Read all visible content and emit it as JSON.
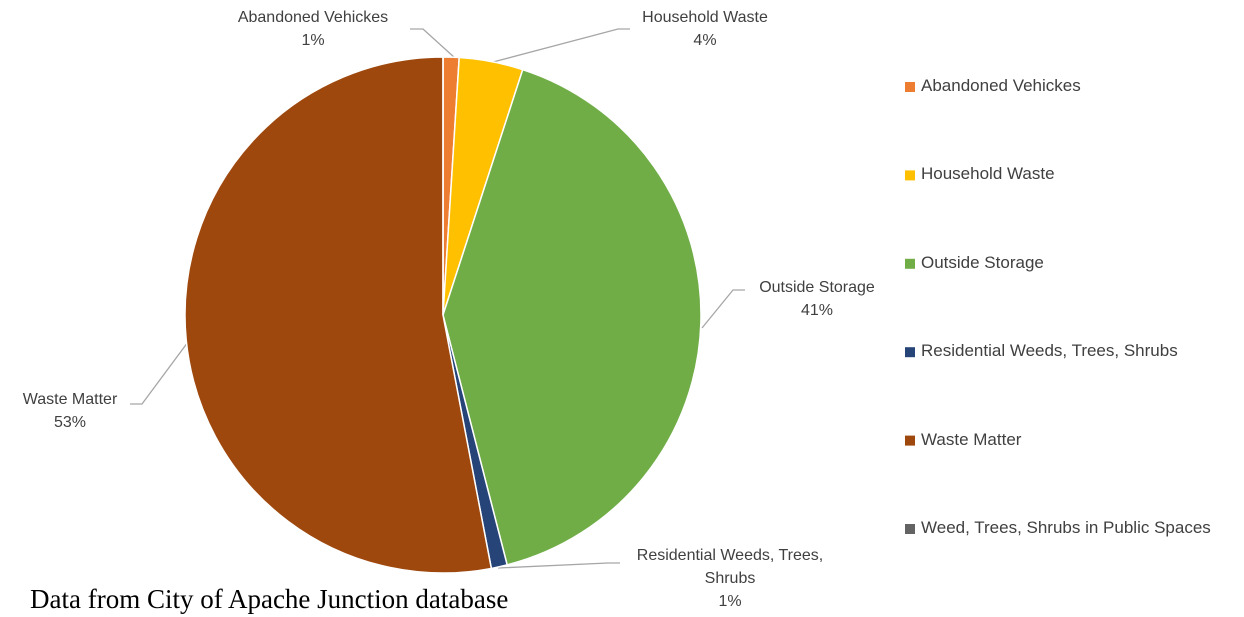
{
  "chart_data": {
    "type": "pie",
    "categories": [
      "Abandoned Vehickes",
      "Household Waste",
      "Outside Storage",
      "Residential Weeds, Trees, Shrubs",
      "Waste Matter",
      "Weed, Trees, Shrubs in Public Spaces"
    ],
    "values": [
      1,
      4,
      41,
      1,
      53,
      0
    ],
    "value_labels": [
      "1%",
      "4%",
      "41%",
      "1%",
      "53%",
      null
    ],
    "colors": [
      "#ed7d31",
      "#ffc000",
      "#70ad47",
      "#264478",
      "#9e480e",
      "#636363"
    ],
    "legend": "right",
    "note": "Data from City of Apache Junction database"
  }
}
